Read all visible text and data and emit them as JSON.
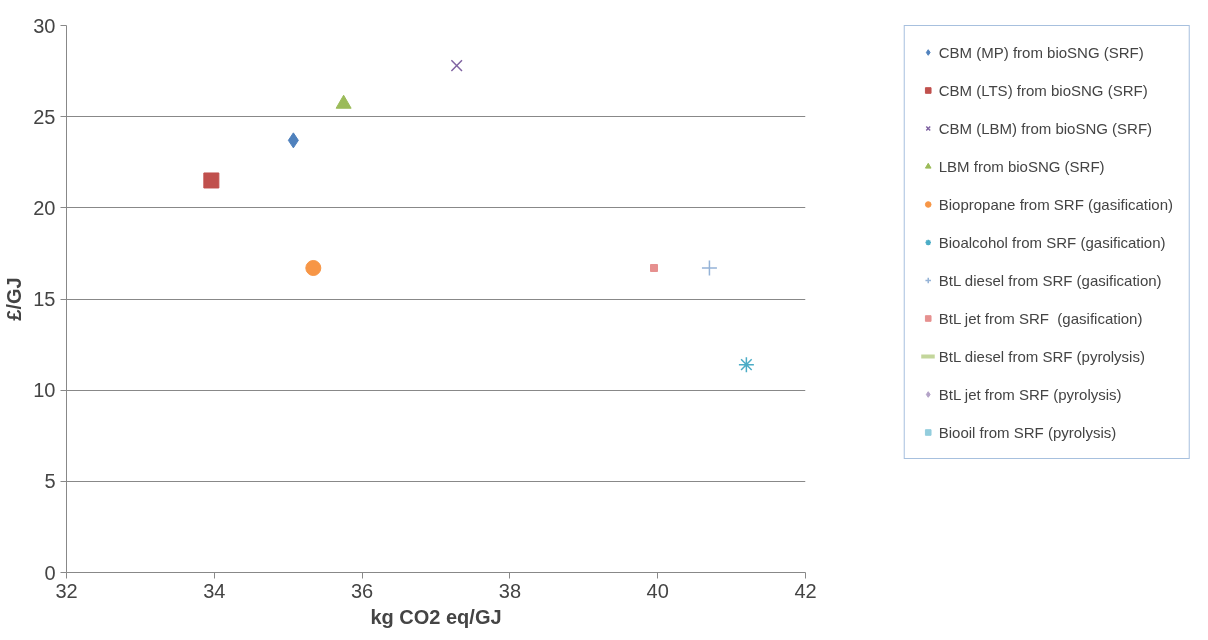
{
  "chart_data": {
    "type": "scatter",
    "xlabel": "kg CO2 eq/GJ",
    "ylabel": "£/GJ",
    "xlim": [
      32,
      42
    ],
    "ylim": [
      0,
      30
    ],
    "xticks": [
      32,
      34,
      36,
      38,
      40,
      42
    ],
    "yticks": [
      0,
      5,
      10,
      15,
      20,
      25,
      30
    ],
    "grid": "y",
    "legend": "right",
    "series": [
      {
        "name": "CBM (MP) from bioSNG (SRF)",
        "color": "#4f81bd",
        "marker": "diamond",
        "x": [
          35.07
        ],
        "values": [
          23.7
        ]
      },
      {
        "name": "CBM (LTS) from bioSNG (SRF)",
        "color": "#c0504d",
        "marker": "square",
        "x": [
          33.96
        ],
        "values": [
          21.5
        ]
      },
      {
        "name": "CBM (LBM) from bioSNG (SRF)",
        "color": "#8064a2",
        "marker": "cross",
        "x": [
          37.28
        ],
        "values": [
          27.8
        ]
      },
      {
        "name": "LBM from bioSNG (SRF)",
        "color": "#9bbb59",
        "marker": "triangle",
        "x": [
          35.75
        ],
        "values": [
          25.7
        ]
      },
      {
        "name": "Biopropane from SRF (gasification)",
        "color": "#f79646",
        "marker": "circle",
        "x": [
          35.34
        ],
        "values": [
          16.7
        ]
      },
      {
        "name": "Bioalcohol from SRF (gasification)",
        "color": "#4bacc6",
        "marker": "cross",
        "x": [
          41.2
        ],
        "values": [
          11.4
        ]
      },
      {
        "name": "BtL diesel from SRF (gasification)",
        "color": "#95b3d7",
        "marker": "cross",
        "x": [
          40.7
        ],
        "values": [
          16.7
        ]
      },
      {
        "name": "BtL jet from SRF  (gasification)",
        "color": "#e6908f",
        "marker": "square",
        "x": [
          39.95
        ],
        "values": [
          16.7
        ]
      },
      {
        "name": "BtL diesel from SRF (pyrolysis)",
        "color": "#c3d69b",
        "marker": "none"
      },
      {
        "name": "BtL jet from SRF (pyrolysis)",
        "color": "#b3a2c7",
        "marker": "diamond"
      },
      {
        "name": "Biooil from SRF (pyrolysis)",
        "color": "#93cddd",
        "marker": "square"
      }
    ]
  }
}
